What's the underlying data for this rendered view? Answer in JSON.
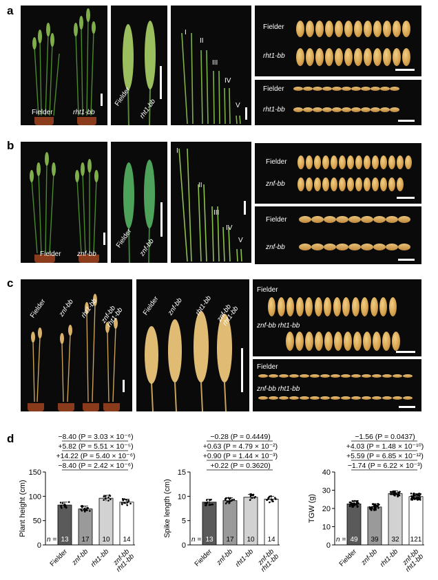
{
  "panel_letters": {
    "a": "a",
    "b": "b",
    "c": "c",
    "d": "d"
  },
  "row_a": {
    "plant_labels": [
      "Fielder",
      "rht1-bb"
    ],
    "spike_labels": [
      "Fielder",
      "rht1-bb"
    ],
    "internode_labels": [
      "I",
      "II",
      "III",
      "IV",
      "V"
    ],
    "grain_labels_top": [
      "Fielder",
      "rht1-bb"
    ],
    "grain_labels_bottom": [
      "Fielder",
      "rht1-bb"
    ]
  },
  "row_b": {
    "plant_labels": [
      "Fielder",
      "znf-bb"
    ],
    "spike_labels": [
      "Fielder",
      "znf-bb"
    ],
    "internode_labels": [
      "I",
      "II",
      "III",
      "IV",
      "V"
    ],
    "grain_labels_top": [
      "Fielder",
      "znf-bb"
    ],
    "grain_labels_bottom": [
      "Fielder",
      "znf-bb"
    ]
  },
  "row_c": {
    "plant_labels": [
      "Fielder",
      "znf-bb",
      "rht1-bb",
      "znf-bb rht1-bb"
    ],
    "spike_labels": [
      "Fielder",
      "znf-bb",
      "rht1-bb",
      "znf-bb rht1-bb"
    ],
    "grain_labels_top": [
      "Fielder",
      "znf-bb rht1-bb"
    ],
    "grain_labels_bottom": [
      "Fielder",
      "znf-bb rht1-bb"
    ]
  },
  "colors": {
    "c1": "#5a5a5a",
    "c2": "#9a9a9a",
    "c3": "#d2d2d2",
    "c4": "#ffffff"
  },
  "chart_data": [
    {
      "type": "bar",
      "categories": [
        "Fielder",
        "znf-bb",
        "rht1-bb",
        "znf-bb rht1-bb"
      ],
      "values": [
        82,
        74,
        96,
        88
      ],
      "n": [
        "13",
        "17",
        "10",
        "14"
      ],
      "n_label": "n =",
      "ylabel": "Plant height (cm)",
      "ylim": [
        0,
        150
      ],
      "yticks": [
        "0",
        "50",
        "100",
        "150"
      ],
      "annotations": [
        "−8.40 (P = 3.03 × 10⁻⁶)",
        "+5.82 (P = 5.51 × 10⁻⁵)",
        "+14.22 (P = 5.40 × 10⁻⁶)",
        "−8.40 (P = 2.42 × 10⁻⁶)"
      ]
    },
    {
      "type": "bar",
      "categories": [
        "Fielder",
        "znf-bb",
        "rht1-bb",
        "znf-bb rht1-bb"
      ],
      "values": [
        8.8,
        9.1,
        9.8,
        9.4
      ],
      "n": [
        "13",
        "17",
        "10",
        "14"
      ],
      "n_label": "n =",
      "ylabel": "Spike length (cm)",
      "ylim": [
        0,
        15
      ],
      "yticks": [
        "0",
        "5",
        "10",
        "15"
      ],
      "annotations": [
        "−0.28 (P = 0.4449)",
        "+0.63 (P = 4.79 × 10⁻²)",
        "+0.90 (P = 1.44 × 10⁻³)",
        "+0.22 (P = 0.3620)"
      ]
    },
    {
      "type": "bar",
      "categories": [
        "Fielder",
        "znf-bb",
        "rht1-bb",
        "znf-bb rht1-bb"
      ],
      "values": [
        22.5,
        20.8,
        28.1,
        26.5
      ],
      "n": [
        "49",
        "39",
        "32",
        "121"
      ],
      "n_label": "n =",
      "ylabel": "TGW (g)",
      "ylim": [
        0,
        40
      ],
      "yticks": [
        "0",
        "10",
        "20",
        "30",
        "40"
      ],
      "annotations": [
        "−1.56 (P = 0.0437)",
        "+4.03 (P = 1.48 × 10⁻¹⁰)",
        "+5.59 (P = 6.85 × 10⁻¹²)",
        "−1.74 (P = 6.22 × 10⁻³)"
      ]
    }
  ]
}
